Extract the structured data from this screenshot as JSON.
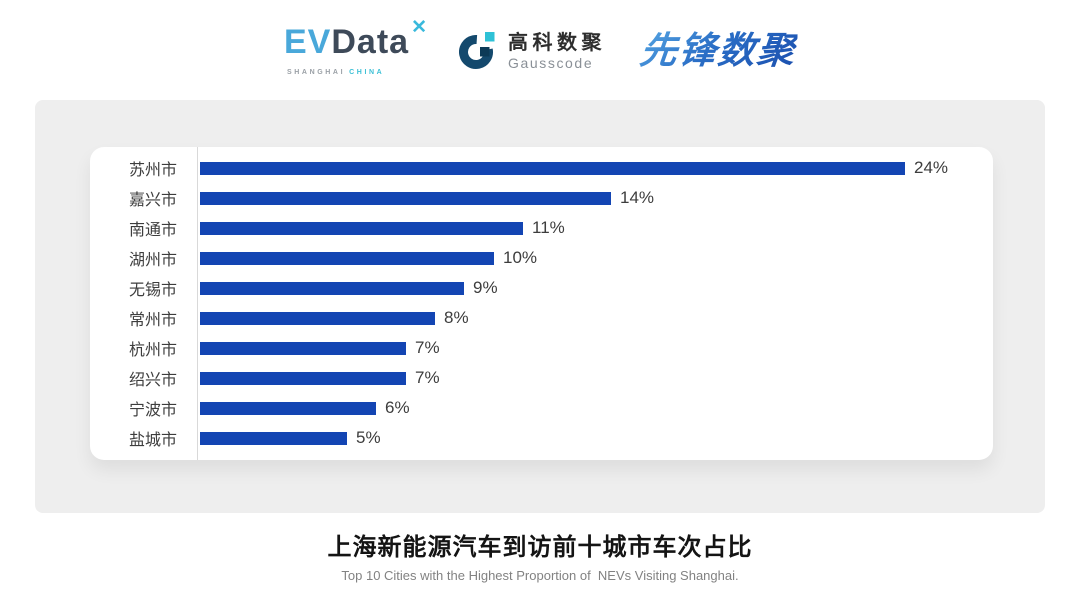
{
  "header": {
    "logos": {
      "evdata": {
        "ev": "EV",
        "data": "Data",
        "mark": "✕",
        "sub_left": "SHANGHAI",
        "sub_right": "CHINA"
      },
      "gausscode": {
        "cn": "高科数聚",
        "en": "Gausscode"
      },
      "pioneer": {
        "text": "先锋数聚"
      }
    }
  },
  "chart_data": {
    "type": "bar",
    "orientation": "horizontal",
    "categories": [
      "苏州市",
      "嘉兴市",
      "南通市",
      "湖州市",
      "无锡市",
      "常州市",
      "杭州市",
      "绍兴市",
      "宁波市",
      "盐城市"
    ],
    "values": [
      24,
      14,
      11,
      10,
      9,
      8,
      7,
      7,
      6,
      5
    ],
    "value_labels": [
      "24%",
      "14%",
      "11%",
      "10%",
      "9%",
      "8%",
      "7%",
      "7%",
      "6%",
      "5%"
    ],
    "title": "上海新能源汽车到访前十城市车次占比",
    "subtitle": "Top 10 Cities with the Highest Proportion of  NEVs Visiting Shanghai.",
    "xlabel": "",
    "ylabel": "",
    "xlim": [
      0,
      24
    ],
    "grid": false,
    "legend": false,
    "bar_color": "#1345b3",
    "axis_line_color": "#d9d9d9",
    "label_color": "#3d3d3d"
  }
}
